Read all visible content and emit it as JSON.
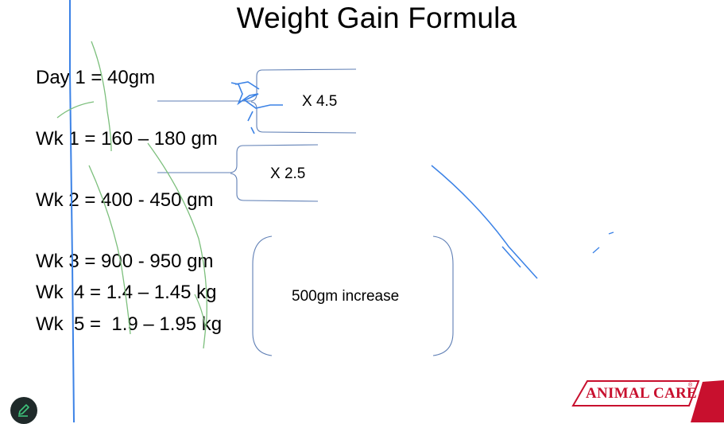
{
  "slide": {
    "title": "Weight Gain Formula",
    "lines": [
      "Day 1 = 40gm",
      "Wk 1 = 160 – 180 gm",
      "Wk 2 = 400 - 450 gm",
      "Wk 3 = 900 - 950 gm",
      "Wk  4 = 1.4 – 1.45 kg",
      "Wk  5 =  1.9 – 1.95 kg"
    ],
    "notes": {
      "factor_1": "X 4.5",
      "factor_2": "X 2.5",
      "increase": "500gm increase"
    }
  },
  "branding": {
    "name": "ANIMAL CARE",
    "registered_mark": "®",
    "color": "#c8102e"
  },
  "toolbar": {
    "edit_icon": "pencil-icon"
  },
  "colors": {
    "pen_blue": "#3b82e6",
    "pen_green": "#7cbf7c",
    "pen_blue_light": "#4a90e2",
    "bracket": "#5f7fb5"
  }
}
